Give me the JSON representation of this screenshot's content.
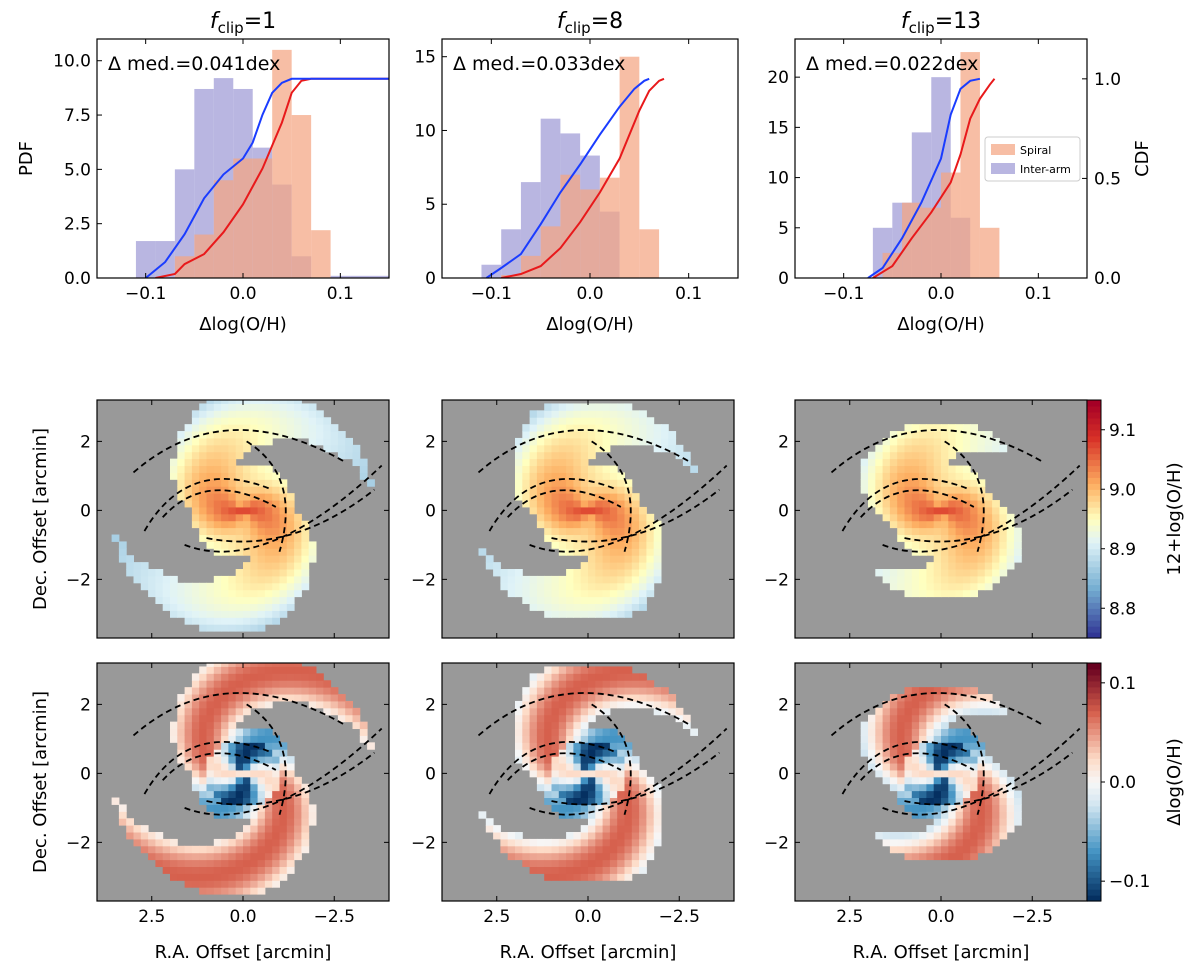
{
  "chart_data": [
    {
      "type": "histogram_cdf",
      "title": {
        "main": "f",
        "sub": "clip",
        "rest": "=1"
      },
      "annotation": "Δ med.=0.041dex",
      "xlabel": "Δlog(O/H)",
      "ylabel": "PDF",
      "xlim": [
        -0.15,
        0.15
      ],
      "ylim": [
        0,
        11.0
      ],
      "xticks": [
        -0.1,
        0.0,
        0.1
      ],
      "xtick_labels": [
        "−0.1",
        "0.0",
        "0.1"
      ],
      "yticks": [
        0,
        2.5,
        5.0,
        7.5,
        10.0
      ],
      "ytick_labels": [
        "0.0",
        "2.5",
        "5.0",
        "7.5",
        "10.0"
      ],
      "series": [
        {
          "name": "Spiral",
          "color": "#f4a582",
          "bins": [
            -0.09,
            -0.07,
            -0.05,
            -0.03,
            -0.01,
            0.01,
            0.03,
            0.05,
            0.07,
            0.09
          ],
          "values": [
            0.0,
            1.0,
            2.0,
            4.5,
            5.5,
            5.5,
            10.5,
            7.5,
            2.2
          ]
        },
        {
          "name": "Inter-arm",
          "color": "#9e9ad6",
          "bins": [
            -0.11,
            -0.09,
            -0.07,
            -0.05,
            -0.03,
            -0.01,
            0.01,
            0.03,
            0.05,
            0.07,
            0.09,
            0.11,
            0.13,
            0.15
          ],
          "values": [
            1.7,
            1.7,
            5.0,
            8.7,
            9.2,
            8.7,
            6.0,
            4.3,
            1.0,
            0.0,
            0.1,
            0.1,
            0.1
          ]
        }
      ],
      "cdf": [
        {
          "name": "Spiral",
          "color": "#e8191b",
          "x": [
            -0.09,
            -0.07,
            -0.06,
            -0.04,
            -0.02,
            0.0,
            0.02,
            0.04,
            0.05,
            0.06,
            0.07,
            0.09,
            0.15
          ],
          "y": [
            0.0,
            0.02,
            0.07,
            0.12,
            0.23,
            0.37,
            0.55,
            0.78,
            0.93,
            0.99,
            1.0,
            1.0,
            1.0
          ]
        },
        {
          "name": "Inter-arm",
          "color": "#1a3cff",
          "x": [
            -0.1,
            -0.08,
            -0.06,
            -0.04,
            -0.02,
            0.0,
            0.01,
            0.02,
            0.03,
            0.04,
            0.05,
            0.07,
            0.15
          ],
          "y": [
            0.0,
            0.08,
            0.22,
            0.4,
            0.52,
            0.6,
            0.68,
            0.82,
            0.93,
            0.98,
            1.0,
            1.0,
            1.0
          ]
        }
      ]
    },
    {
      "type": "histogram_cdf",
      "title": {
        "main": "f",
        "sub": "clip",
        "rest": "=8"
      },
      "annotation": "Δ med.=0.033dex",
      "xlabel": "Δlog(O/H)",
      "xlim": [
        -0.15,
        0.15
      ],
      "ylim": [
        0,
        16.2
      ],
      "xticks": [
        -0.1,
        0.0,
        0.1
      ],
      "xtick_labels": [
        "−0.1",
        "0.0",
        "0.1"
      ],
      "yticks": [
        0,
        5,
        10,
        15
      ],
      "ytick_labels": [
        "0",
        "5",
        "10",
        "15"
      ],
      "series": [
        {
          "name": "Spiral",
          "color": "#f4a582",
          "bins": [
            -0.09,
            -0.07,
            -0.05,
            -0.03,
            -0.01,
            0.01,
            0.03,
            0.05,
            0.07
          ],
          "values": [
            0.2,
            1.5,
            3.5,
            7.0,
            6.0,
            6.8,
            15.0,
            3.3
          ]
        },
        {
          "name": "Inter-arm",
          "color": "#9e9ad6",
          "bins": [
            -0.11,
            -0.09,
            -0.07,
            -0.05,
            -0.03,
            -0.01,
            0.01,
            0.03,
            0.05
          ],
          "values": [
            0.9,
            3.3,
            6.5,
            10.8,
            9.8,
            8.3,
            4.5,
            0.0
          ]
        }
      ],
      "cdf": [
        {
          "name": "Spiral",
          "color": "#e8191b",
          "x": [
            -0.09,
            -0.07,
            -0.05,
            -0.03,
            -0.01,
            0.01,
            0.03,
            0.05,
            0.06,
            0.07,
            0.075
          ],
          "y": [
            0.0,
            0.02,
            0.06,
            0.15,
            0.28,
            0.43,
            0.6,
            0.84,
            0.94,
            0.99,
            1.0
          ]
        },
        {
          "name": "Inter-arm",
          "color": "#1a3cff",
          "x": [
            -0.105,
            -0.09,
            -0.07,
            -0.05,
            -0.03,
            -0.01,
            0.01,
            0.03,
            0.045,
            0.055,
            0.06
          ],
          "y": [
            0.0,
            0.05,
            0.12,
            0.27,
            0.43,
            0.57,
            0.72,
            0.86,
            0.95,
            0.99,
            1.0
          ]
        }
      ]
    },
    {
      "type": "histogram_cdf",
      "title": {
        "main": "f",
        "sub": "clip",
        "rest": "=13"
      },
      "annotation": "Δ med.=0.022dex",
      "xlabel": "Δlog(O/H)",
      "ylabel2": "CDF",
      "xlim": [
        -0.15,
        0.15
      ],
      "ylim": [
        0,
        23.8
      ],
      "ylim2": [
        0,
        1.2
      ],
      "xticks": [
        -0.1,
        0.0,
        0.1
      ],
      "xtick_labels": [
        "−0.1",
        "0.0",
        "0.1"
      ],
      "yticks": [
        0,
        5,
        10,
        15,
        20
      ],
      "ytick_labels": [
        "0",
        "5",
        "10",
        "15",
        "20"
      ],
      "yticks2": [
        0.0,
        0.5,
        1.0
      ],
      "ytick2_labels": [
        "0.0",
        "0.5",
        "1.0"
      ],
      "legend": [
        "Spiral",
        "Inter-arm"
      ],
      "legend_loc": "right",
      "series": [
        {
          "name": "Spiral",
          "color": "#f4a582",
          "bins": [
            -0.06,
            -0.04,
            -0.02,
            0.0,
            0.02,
            0.04,
            0.06
          ],
          "values": [
            2.5,
            7.5,
            7.0,
            10.5,
            22.5,
            5.0
          ]
        },
        {
          "name": "Inter-arm",
          "color": "#9e9ad6",
          "bins": [
            -0.07,
            -0.05,
            -0.03,
            -0.01,
            0.01,
            0.03
          ],
          "values": [
            5.0,
            7.5,
            14.5,
            20.0,
            6.0
          ]
        }
      ],
      "cdf": [
        {
          "name": "Spiral",
          "color": "#e8191b",
          "x": [
            -0.07,
            -0.05,
            -0.03,
            -0.01,
            0.01,
            0.02,
            0.03,
            0.04,
            0.05,
            0.055
          ],
          "y": [
            0.0,
            0.06,
            0.2,
            0.33,
            0.48,
            0.62,
            0.8,
            0.9,
            0.97,
            1.0
          ]
        },
        {
          "name": "Inter-arm",
          "color": "#1a3cff",
          "x": [
            -0.075,
            -0.06,
            -0.04,
            -0.02,
            0.0,
            0.01,
            0.02,
            0.03,
            0.04
          ],
          "y": [
            0.0,
            0.05,
            0.2,
            0.38,
            0.6,
            0.82,
            0.95,
            0.99,
            1.0
          ]
        }
      ]
    },
    {
      "type": "heatmap_grid",
      "rows": [
        {
          "ylabel": "Dec. Offset [arcmin]",
          "colorbar_label": "12+log(O/H)",
          "colorbar_ticks": [
            "8.8",
            "8.9",
            "9.0",
            "9.1"
          ],
          "colorbar_tick_values": [
            8.8,
            8.9,
            9.0,
            9.1
          ],
          "colorbar_range": [
            8.75,
            9.15
          ],
          "colormap": "RdYlBu_r"
        },
        {
          "ylabel": "Dec. Offset [arcmin]",
          "colorbar_label": "Δlog(O/H)",
          "colorbar_ticks": [
            "−0.1",
            "0.0",
            "0.1"
          ],
          "colorbar_tick_values": [
            -0.1,
            0.0,
            0.1
          ],
          "colorbar_range": [
            -0.12,
            0.12
          ],
          "colormap": "RdBu_r"
        }
      ],
      "xlabel": "R.A. Offset [arcmin]",
      "xlim": [
        4.0,
        -4.0
      ],
      "ylim": [
        -3.7,
        3.2
      ],
      "xticks": [
        2.5,
        0.0,
        -2.5
      ],
      "xtick_labels": [
        "2.5",
        "0.0",
        "−2.5"
      ],
      "yticks": [
        -2,
        0,
        2
      ],
      "ytick_labels": [
        "−2",
        "0",
        "2"
      ],
      "background_color": "#999999",
      "contour_style": "black dashed"
    }
  ]
}
